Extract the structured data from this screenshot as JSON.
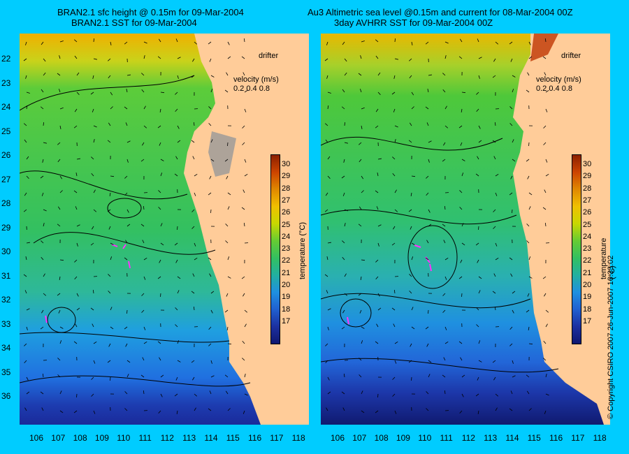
{
  "titles": {
    "left_line1": "BRAN2.1 sfc height @ 0.15m for 09-Mar-2004",
    "left_line2": "BRAN2.1 SST for 09-Mar-2004",
    "right_line1": "Au3 Altimetric sea level  @0.15m and current for 08-Mar-2004 00Z",
    "right_line2": "3day AVHRR SST for 09-Mar-2004 00Z"
  },
  "legend": {
    "drifter": "drifter",
    "velocity_title": "velocity (m/s)",
    "velocity_values": "0.2 0.4 0.8",
    "colorbar_label": "temperature (°C)"
  },
  "colorbar_ticks": [
    "30",
    "29",
    "28",
    "27",
    "26",
    "25",
    "24",
    "23",
    "22",
    "21",
    "20",
    "19",
    "18",
    "17"
  ],
  "lat_ticks": [
    "22",
    "23",
    "24",
    "25",
    "26",
    "27",
    "28",
    "29",
    "30",
    "31",
    "32",
    "33",
    "34",
    "35",
    "36"
  ],
  "lon_ticks": [
    "106",
    "107",
    "108",
    "109",
    "110",
    "111",
    "112",
    "113",
    "114",
    "115",
    "116",
    "117",
    "118"
  ],
  "copyright": "© Copyright CSIRO 2007   26-Jun-2007 16:33:02",
  "colors": {
    "background": "#00ccff",
    "land": "#ffcc99",
    "drifter": "#ff33ff",
    "warm": "#f0b400",
    "mid": "#33cc33",
    "cool": "#1f9fe0",
    "cold": "#1a2a9a"
  }
}
